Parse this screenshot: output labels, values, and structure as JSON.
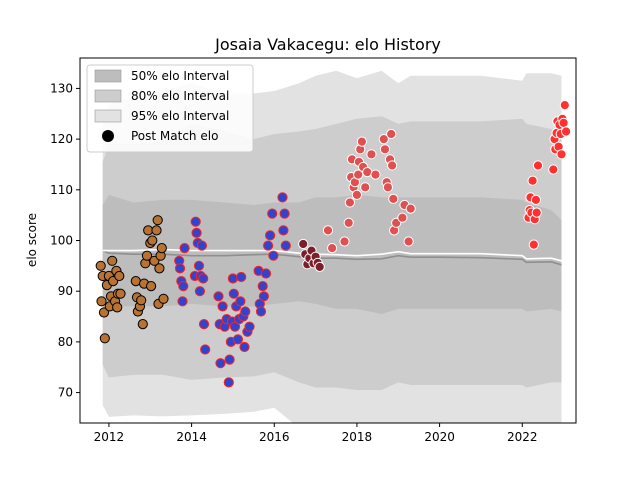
{
  "chart_data": {
    "type": "scatter",
    "title": "Josaia Vakacegu: elo History",
    "xlabel": "",
    "ylabel": "elo score",
    "xlim": [
      2011.3,
      2023.3
    ],
    "ylim": [
      64,
      136
    ],
    "x_ticks": [
      2012,
      2014,
      2016,
      2018,
      2020,
      2022
    ],
    "y_ticks": [
      70,
      80,
      90,
      100,
      110,
      120,
      130
    ],
    "legend": {
      "position": "upper-left",
      "entries": [
        "50% elo Interval",
        "80% elo Interval",
        "95% elo Interval",
        "Post Match elo"
      ]
    },
    "colors": {
      "band95": "#e2e2e2",
      "band80": "#cdcdcd",
      "band50": "#bdbdbd",
      "median_line": "#8f8f8f",
      "mean_line": "#ffffff",
      "c2012": "#b87333",
      "c2014": "#3344cc",
      "c2016": "#7a1f2b",
      "c2018": "#e05050",
      "c2022": "#ff3030"
    },
    "bands": {
      "x": [
        2011.85,
        2012.0,
        2012.6,
        2013.3,
        2014.0,
        2014.8,
        2015.5,
        2016.0,
        2016.6,
        2017.0,
        2017.5,
        2018.0,
        2018.6,
        2019.0,
        2019.3,
        2020.0,
        2021.0,
        2022.0,
        2022.1,
        2022.7,
        2022.95
      ],
      "lo95": [
        67.5,
        65.2,
        65.5,
        65.3,
        65.5,
        65.8,
        66.2,
        67.0,
        63.0,
        62.5,
        60.0,
        58.0,
        62.5,
        63.0,
        62.5,
        62.5,
        62.5,
        62.0,
        60.5,
        62.0,
        61.0
      ],
      "hi95": [
        124.0,
        127.0,
        128.5,
        129.5,
        131.0,
        129.0,
        129.0,
        129.5,
        131.0,
        132.5,
        133.5,
        132.0,
        133.5,
        131.0,
        132.5,
        132.5,
        132.5,
        131.5,
        133.0,
        133.0,
        132.5
      ],
      "lo80": [
        75.5,
        73.0,
        73.5,
        73.5,
        72.5,
        73.0,
        73.2,
        74.0,
        72.0,
        71.0,
        71.0,
        70.5,
        70.5,
        72.0,
        71.5,
        71.5,
        71.5,
        71.5,
        71.0,
        72.0,
        72.0
      ],
      "hi80": [
        115.5,
        119.0,
        119.0,
        119.5,
        123.0,
        121.5,
        120.0,
        121.0,
        121.5,
        122.0,
        123.0,
        124.0,
        124.5,
        123.0,
        123.5,
        123.5,
        123.5,
        124.0,
        123.0,
        122.0,
        121.5
      ],
      "lo50": [
        87.5,
        87.0,
        87.0,
        87.0,
        87.5,
        87.0,
        87.0,
        87.5,
        88.0,
        87.5,
        86.5,
        86.5,
        85.5,
        86.5,
        86.5,
        86.5,
        86.5,
        86.5,
        86.0,
        86.5,
        86.0
      ],
      "hi50": [
        107.0,
        109.0,
        107.5,
        108.0,
        108.0,
        107.5,
        107.0,
        107.5,
        107.5,
        108.5,
        108.5,
        109.0,
        108.5,
        108.5,
        108.5,
        108.5,
        108.5,
        108.0,
        107.5,
        106.0,
        104.0
      ],
      "median": [
        98.0,
        97.5,
        97.3,
        97.3,
        97.0,
        97.0,
        97.2,
        97.3,
        96.8,
        96.5,
        96.5,
        96.3,
        96.4,
        97.0,
        96.7,
        96.7,
        96.6,
        96.3,
        95.7,
        95.8,
        95.2
      ],
      "mean": [
        98.0,
        98.0,
        98.0,
        98.2,
        98.0,
        98.0,
        98.0,
        98.0,
        97.5,
        97.3,
        97.2,
        97.0,
        97.3,
        97.8,
        97.4,
        97.4,
        97.4,
        97.0,
        96.4,
        96.5,
        96.0
      ]
    },
    "series": [
      {
        "color_key": "c2012",
        "edge": "#000000",
        "points": [
          [
            2011.8,
            95.0
          ],
          [
            2011.82,
            88.0
          ],
          [
            2011.85,
            93.0
          ],
          [
            2011.88,
            85.8
          ],
          [
            2011.9,
            80.7
          ],
          [
            2011.95,
            91.2
          ],
          [
            2012.0,
            93.0
          ],
          [
            2012.02,
            87.0
          ],
          [
            2012.05,
            89.0
          ],
          [
            2012.08,
            96.0
          ],
          [
            2012.1,
            92.0
          ],
          [
            2012.15,
            88.0
          ],
          [
            2012.18,
            94.0
          ],
          [
            2012.2,
            86.8
          ],
          [
            2012.22,
            89.5
          ],
          [
            2012.25,
            93.0
          ],
          [
            2012.28,
            89.5
          ],
          [
            2012.65,
            92.0
          ],
          [
            2012.68,
            88.8
          ],
          [
            2012.7,
            86.0
          ],
          [
            2012.75,
            87.0
          ],
          [
            2012.78,
            88.2
          ],
          [
            2012.82,
            83.5
          ],
          [
            2012.85,
            91.5
          ],
          [
            2012.88,
            95.5
          ],
          [
            2012.92,
            97.0
          ],
          [
            2012.95,
            102.0
          ],
          [
            2013.0,
            99.5
          ],
          [
            2013.02,
            91.0
          ],
          [
            2013.05,
            100.0
          ],
          [
            2013.1,
            96.0
          ],
          [
            2013.15,
            102.0
          ],
          [
            2013.18,
            104.0
          ],
          [
            2013.2,
            87.5
          ],
          [
            2013.22,
            94.5
          ],
          [
            2013.25,
            97.0
          ],
          [
            2013.28,
            98.5
          ],
          [
            2013.32,
            88.5
          ]
        ]
      },
      {
        "color_key": "c2014",
        "edge": "#ff2020",
        "points": [
          [
            2013.7,
            96.0
          ],
          [
            2013.72,
            94.5
          ],
          [
            2013.75,
            92.0
          ],
          [
            2013.78,
            88.0
          ],
          [
            2013.8,
            91.0
          ],
          [
            2013.83,
            98.5
          ],
          [
            2014.08,
            93.0
          ],
          [
            2014.1,
            103.7
          ],
          [
            2014.12,
            101.5
          ],
          [
            2014.15,
            99.5
          ],
          [
            2014.18,
            95.0
          ],
          [
            2014.2,
            90.0
          ],
          [
            2014.22,
            93.0
          ],
          [
            2014.25,
            99.0
          ],
          [
            2014.28,
            92.5
          ],
          [
            2014.3,
            83.5
          ],
          [
            2014.33,
            78.5
          ],
          [
            2014.65,
            89.0
          ],
          [
            2014.68,
            83.5
          ],
          [
            2014.7,
            75.8
          ],
          [
            2014.75,
            87.0
          ],
          [
            2014.8,
            83.0
          ],
          [
            2014.85,
            84.5
          ],
          [
            2014.9,
            72.0
          ],
          [
            2014.92,
            76.5
          ],
          [
            2014.95,
            80.0
          ],
          [
            2014.98,
            84.0
          ],
          [
            2015.0,
            92.5
          ],
          [
            2015.02,
            89.5
          ],
          [
            2015.05,
            83.0
          ],
          [
            2015.08,
            87.0
          ],
          [
            2015.12,
            80.5
          ],
          [
            2015.15,
            84.5
          ],
          [
            2015.18,
            88.0
          ],
          [
            2015.2,
            92.8
          ],
          [
            2015.25,
            85.0
          ],
          [
            2015.28,
            79.0
          ],
          [
            2015.3,
            86.0
          ],
          [
            2015.35,
            82.0
          ],
          [
            2015.4,
            83.0
          ],
          [
            2015.62,
            94.0
          ],
          [
            2015.65,
            87.5
          ],
          [
            2015.68,
            86.0
          ],
          [
            2015.72,
            91.0
          ],
          [
            2015.75,
            89.0
          ],
          [
            2015.8,
            93.5
          ],
          [
            2015.85,
            99.0
          ],
          [
            2015.9,
            101.0
          ],
          [
            2015.95,
            105.3
          ],
          [
            2015.98,
            97.0
          ],
          [
            2016.2,
            108.5
          ],
          [
            2016.22,
            102.0
          ],
          [
            2016.25,
            105.3
          ],
          [
            2016.28,
            99.0
          ]
        ]
      },
      {
        "color_key": "c2016",
        "edge": "#ffffff",
        "points": [
          [
            2016.7,
            99.3
          ],
          [
            2016.75,
            97.3
          ],
          [
            2016.8,
            95.3
          ],
          [
            2016.85,
            96.5
          ],
          [
            2016.9,
            98.0
          ],
          [
            2016.95,
            95.5
          ],
          [
            2017.0,
            96.8
          ],
          [
            2017.05,
            95.6
          ],
          [
            2017.1,
            94.8
          ]
        ]
      },
      {
        "color_key": "c2018",
        "edge": "#ffffff",
        "points": [
          [
            2017.3,
            102.0
          ],
          [
            2017.4,
            98.5
          ],
          [
            2017.7,
            99.8
          ],
          [
            2017.8,
            103.5
          ],
          [
            2017.83,
            107.5
          ],
          [
            2017.86,
            112.5
          ],
          [
            2017.88,
            116.0
          ],
          [
            2017.92,
            110.5
          ],
          [
            2017.95,
            111.5
          ],
          [
            2018.0,
            109.0
          ],
          [
            2018.03,
            113.0
          ],
          [
            2018.05,
            115.5
          ],
          [
            2018.08,
            118.0
          ],
          [
            2018.12,
            119.5
          ],
          [
            2018.15,
            114.5
          ],
          [
            2018.2,
            110.5
          ],
          [
            2018.25,
            113.5
          ],
          [
            2018.35,
            117.0
          ],
          [
            2018.45,
            113.0
          ],
          [
            2018.65,
            120.0
          ],
          [
            2018.68,
            118.0
          ],
          [
            2018.72,
            111.5
          ],
          [
            2018.75,
            110.5
          ],
          [
            2018.8,
            116.0
          ],
          [
            2018.83,
            121.0
          ],
          [
            2018.85,
            114.8
          ],
          [
            2018.88,
            108.2
          ],
          [
            2018.9,
            102.0
          ],
          [
            2018.95,
            103.5
          ],
          [
            2019.1,
            104.5
          ],
          [
            2019.15,
            107.0
          ],
          [
            2019.25,
            99.8
          ],
          [
            2019.3,
            106.3
          ]
        ]
      },
      {
        "color_key": "c2022",
        "edge": "#ffffff",
        "points": [
          [
            2022.15,
            104.5
          ],
          [
            2022.18,
            106.0
          ],
          [
            2022.2,
            108.5
          ],
          [
            2022.22,
            105.5
          ],
          [
            2022.25,
            111.8
          ],
          [
            2022.28,
            99.2
          ],
          [
            2022.3,
            104.2
          ],
          [
            2022.33,
            108.0
          ],
          [
            2022.35,
            105.5
          ],
          [
            2022.38,
            114.8
          ],
          [
            2022.75,
            114.0
          ],
          [
            2022.78,
            120.0
          ],
          [
            2022.8,
            118.0
          ],
          [
            2022.83,
            121.2
          ],
          [
            2022.85,
            123.5
          ],
          [
            2022.88,
            118.5
          ],
          [
            2022.9,
            122.8
          ],
          [
            2022.93,
            121.0
          ],
          [
            2022.95,
            117.0
          ],
          [
            2022.97,
            124.0
          ],
          [
            2023.0,
            123.2
          ],
          [
            2023.03,
            126.7
          ],
          [
            2023.06,
            121.5
          ]
        ]
      }
    ]
  }
}
